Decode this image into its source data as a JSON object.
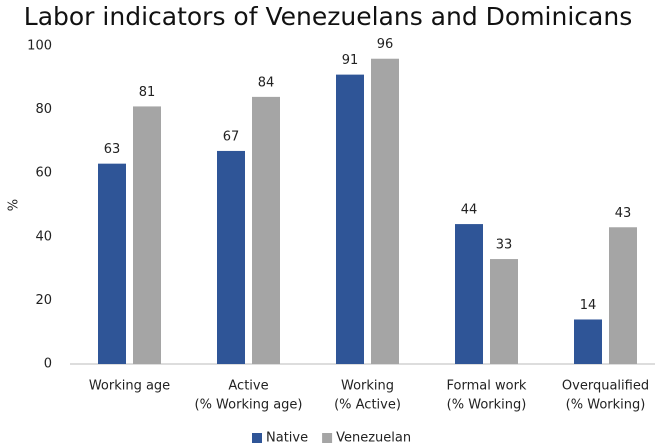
{
  "chart_data": {
    "type": "bar",
    "title": "Labor indicators of Venezuelans and Dominicans",
    "y_label": "%",
    "categories": [
      [
        "Working age"
      ],
      [
        "Active",
        "(% Working age)"
      ],
      [
        "Working",
        "(% Active)"
      ],
      [
        "Formal work",
        "(% Working)"
      ],
      [
        "Overqualified",
        "(% Working)"
      ]
    ],
    "series": [
      {
        "name": "Native",
        "color": "#2f5597",
        "values": [
          63,
          67,
          91,
          44,
          14
        ]
      },
      {
        "name": "Venezuelan",
        "color": "#a5a5a5",
        "values": [
          81,
          84,
          96,
          33,
          43
        ]
      }
    ],
    "ylim": [
      0,
      100
    ],
    "yticks": [
      0,
      20,
      40,
      60,
      80,
      100
    ],
    "grid": false,
    "legend": "bottom"
  }
}
